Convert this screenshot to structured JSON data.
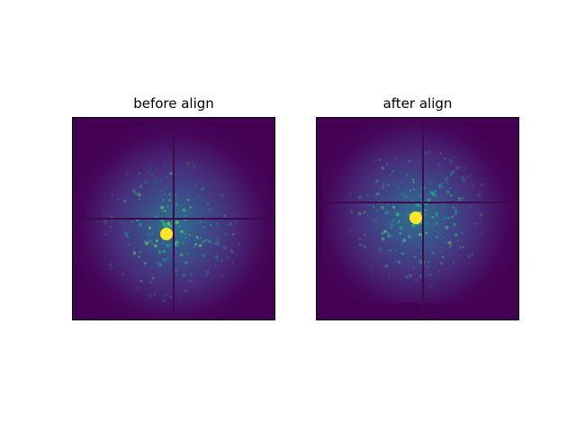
{
  "panels": [
    {
      "title": "before align"
    },
    {
      "title": "after align"
    }
  ],
  "colors": {
    "background": "#44015a",
    "halo": "#3b528b",
    "mid": "#21918c",
    "speckle": "#35b779",
    "center": "#fde725",
    "line": "#3d0a4e"
  }
}
